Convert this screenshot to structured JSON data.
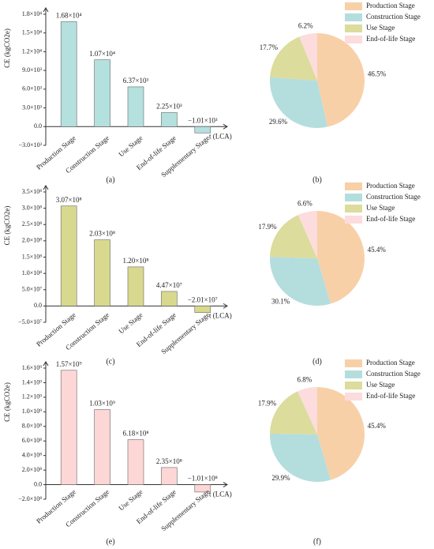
{
  "chart_data": [
    {
      "type": "bar",
      "y_label": "CE (kgCO2e)",
      "x_label": "t (LCA)",
      "caption": "(a)",
      "color": "#b4e0de",
      "categories": [
        "Production Stage",
        "Construction Stage",
        "Use Stage",
        "End-of-life Stage",
        "Supplementary Stage"
      ],
      "values": [
        16800,
        10700,
        6370,
        2250,
        -1010
      ],
      "value_labels": [
        "1.68×10⁴",
        "1.07×10⁴",
        "6.37×10³",
        "2.25×10³",
        "−1.01×10³"
      ],
      "ylim": [
        -3000,
        18000
      ],
      "yticks": [
        {
          "value": -3000,
          "label": "−3.0×10³"
        },
        {
          "value": 0,
          "label": "0.0"
        },
        {
          "value": 3000,
          "label": "3.0×10³"
        },
        {
          "value": 6000,
          "label": "6.0×10³"
        },
        {
          "value": 9000,
          "label": "9.0×10³"
        },
        {
          "value": 12000,
          "label": "1.2×10⁴"
        },
        {
          "value": 15000,
          "label": "1.5×10⁴"
        },
        {
          "value": 18000,
          "label": "1.8×10⁴"
        }
      ]
    },
    {
      "type": "pie",
      "caption": "(b)",
      "categories": [
        "Production Stage",
        "Construction Stage",
        "Use Stage",
        "End-of-life Stage"
      ],
      "values": [
        46.5,
        29.6,
        17.7,
        6.2
      ],
      "value_labels": [
        "46.5%",
        "29.6%",
        "17.7%",
        "6.2%"
      ],
      "colors": [
        "#f8d0a8",
        "#b4dedd",
        "#dcdc9c",
        "#fcdcdc"
      ]
    },
    {
      "type": "bar",
      "y_label": "CE (kgCO2e)",
      "x_label": "t (LCA)",
      "caption": "(c)",
      "color": "#d8d98e",
      "categories": [
        "Production Stage",
        "Construction Stage",
        "Use Stage",
        "End-of-life Stage",
        "Supplementary Stage"
      ],
      "values": [
        307000000,
        203000000,
        120000000,
        44700000,
        -20100000
      ],
      "value_labels": [
        "3.07×10⁸",
        "2.03×10⁸",
        "1.20×10⁸",
        "4.47×10⁷",
        "−2.01×10⁷"
      ],
      "ylim": [
        -50000000,
        350000000
      ],
      "yticks": [
        {
          "value": -50000000,
          "label": "−5.0×10⁷"
        },
        {
          "value": 0,
          "label": "0.0"
        },
        {
          "value": 50000000,
          "label": "5.0×10⁷"
        },
        {
          "value": 100000000,
          "label": "1.0×10⁸"
        },
        {
          "value": 150000000,
          "label": "1.5×10⁸"
        },
        {
          "value": 200000000,
          "label": "2.0×10⁸"
        },
        {
          "value": 250000000,
          "label": "2.5×10⁸"
        },
        {
          "value": 300000000,
          "label": "3.0×10⁸"
        },
        {
          "value": 350000000,
          "label": "3.5×10⁸"
        }
      ]
    },
    {
      "type": "pie",
      "caption": "(d)",
      "categories": [
        "Production Stage",
        "Construction Stage",
        "Use Stage",
        "End-of-life Stage"
      ],
      "values": [
        45.4,
        30.1,
        17.9,
        6.6
      ],
      "value_labels": [
        "45.4%",
        "30.1%",
        "17.9%",
        "6.6%"
      ],
      "colors": [
        "#f8d0a8",
        "#b4dedd",
        "#dcdc9c",
        "#fcdcdc"
      ]
    },
    {
      "type": "bar",
      "y_label": "CE (kgCO2e)",
      "x_label": "t (LCA)",
      "caption": "(e)",
      "color": "#fdd6d6",
      "categories": [
        "Production Stage",
        "Construction Stage",
        "Use Stage",
        "End-of-life Stage",
        "Supplementary Stage"
      ],
      "values": [
        1570000000,
        1030000000,
        618000000,
        235000000,
        -101000000
      ],
      "value_labels": [
        "1.57×10⁹",
        "1.03×10⁹",
        "6.18×10⁸",
        "2.35×10⁸",
        "−1.01×10⁸"
      ],
      "ylim": [
        -200000000,
        1600000000
      ],
      "yticks": [
        {
          "value": -200000000,
          "label": "−2.0×10⁸"
        },
        {
          "value": 0,
          "label": "0.0"
        },
        {
          "value": 200000000,
          "label": "2.0×10⁸"
        },
        {
          "value": 400000000,
          "label": "4.0×10⁸"
        },
        {
          "value": 600000000,
          "label": "6.0×10⁸"
        },
        {
          "value": 800000000,
          "label": "8.0×10⁸"
        },
        {
          "value": 1000000000,
          "label": "1.0×10⁹"
        },
        {
          "value": 1200000000,
          "label": "1.2×10⁹"
        },
        {
          "value": 1400000000,
          "label": "1.4×10⁹"
        },
        {
          "value": 1600000000,
          "label": "1.6×10⁹"
        }
      ]
    },
    {
      "type": "pie",
      "caption": "(f)",
      "categories": [
        "Production Stage",
        "Construction Stage",
        "Use Stage",
        "End-of-life Stage"
      ],
      "values": [
        45.4,
        29.9,
        17.9,
        6.8
      ],
      "value_labels": [
        "45.4%",
        "29.9%",
        "17.9%",
        "6.8%"
      ],
      "colors": [
        "#f8d0a8",
        "#b4dedd",
        "#dcdc9c",
        "#fcdcdc"
      ]
    }
  ]
}
